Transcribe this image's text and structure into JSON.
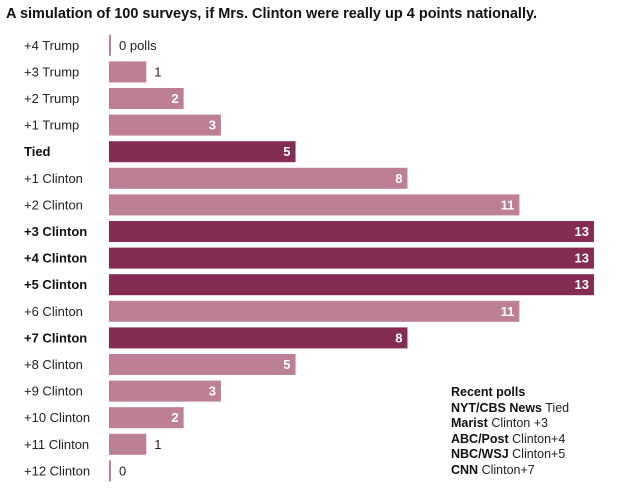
{
  "chart_data": {
    "type": "bar",
    "orientation": "horizontal",
    "title": "A simulation of 100 surveys, if Mrs. Clinton were really up 4 points nationally.",
    "categories": [
      "+4 Trump",
      "+3 Trump",
      "+2 Trump",
      "+1 Trump",
      "Tied",
      "+1 Clinton",
      "+2 Clinton",
      "+3 Clinton",
      "+4 Clinton",
      "+5 Clinton",
      "+6 Clinton",
      "+7 Clinton",
      "+8 Clinton",
      "+9 Clinton",
      "+10 Clinton",
      "+11 Clinton",
      "+12 Clinton"
    ],
    "values": [
      0,
      1,
      2,
      3,
      5,
      8,
      11,
      13,
      13,
      13,
      11,
      8,
      5,
      3,
      2,
      1,
      0
    ],
    "value_labels": [
      "0 polls",
      "1",
      "2",
      "3",
      "5",
      "8",
      "11",
      "13",
      "13",
      "13",
      "11",
      "8",
      "5",
      "3",
      "2",
      "1",
      "0"
    ],
    "highlighted": [
      "Tied",
      "+3 Clinton",
      "+4 Clinton",
      "+5 Clinton",
      "+7 Clinton"
    ],
    "xlim": [
      0,
      13
    ],
    "grid": false,
    "legend_position": "bottom-right",
    "colors": {
      "bar": "#bd7f94",
      "highlight": "#852c55"
    }
  },
  "recent_polls": {
    "title": "Recent polls",
    "items": [
      {
        "name": "NYT/CBS News",
        "result": "Tied"
      },
      {
        "name": "Marist",
        "result": "Clinton +3"
      },
      {
        "name": "ABC/Post",
        "result": "Clinton+4"
      },
      {
        "name": "NBC/WSJ",
        "result": "Clinton+5"
      },
      {
        "name": "CNN",
        "result": "Clinton+7"
      }
    ]
  }
}
